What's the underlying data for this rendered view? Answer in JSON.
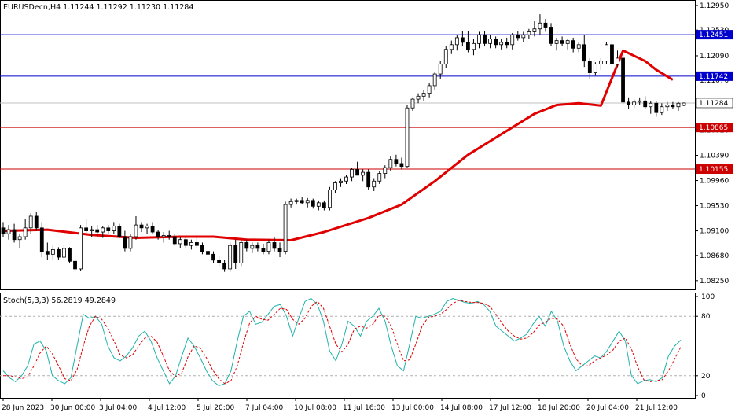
{
  "chart_title": "EURUSDecn,H4  1.11244 1.11292 1.11230 1.11284",
  "colors": {
    "bull_body": "#ffffff",
    "bear_body": "#000000",
    "wick": "#000000",
    "ma_line": "#e00000",
    "resistance_line": "#0000cc",
    "support_line": "#cc0000",
    "current_price_line": "#c0c0c0",
    "stoch_main": "#20b2aa",
    "stoch_signal": "#e00000",
    "blue_badge": "#0000cc",
    "red_badge": "#cc0000",
    "current_badge": "#ffffff"
  },
  "chart_data": [
    {
      "type": "candlestick",
      "ylim": [
        1.081,
        1.1303
      ],
      "y_ticks": [
        "1.12950",
        "1.12530",
        "1.12090",
        "1.11670",
        "1.11250",
        "1.10820",
        "1.10390",
        "1.09960",
        "1.09530",
        "1.09100",
        "1.08680",
        "1.08250"
      ],
      "x_tick_labels": [
        "28 Jun 2023",
        "30 Jun 00:00",
        "3 Jul 04:00",
        "4 Jul 12:00",
        "5 Jul 20:00",
        "7 Jul 04:00",
        "10 Jul 08:00",
        "11 Jul 16:00",
        "13 Jul 00:00",
        "14 Jul 08:00",
        "17 Jul 12:00",
        "18 Jul 20:00",
        "20 Jul 04:00",
        "21 Jul 12:00"
      ],
      "horizontal_lines": [
        {
          "label": "1.12451",
          "value": 1.12451,
          "kind": "resistance"
        },
        {
          "label": "1.11742",
          "value": 1.11742,
          "kind": "resistance"
        },
        {
          "label": "1.10865",
          "value": 1.10865,
          "kind": "support"
        },
        {
          "label": "1.10155",
          "value": 1.10155,
          "kind": "support"
        }
      ],
      "current_price": {
        "label": "1.11284",
        "value": 1.11284
      },
      "ohlc": [
        [
          1.0915,
          1.0925,
          1.09,
          1.0905
        ],
        [
          1.0905,
          1.092,
          1.0895,
          1.0912
        ],
        [
          1.0912,
          1.0922,
          1.089,
          1.0895
        ],
        [
          1.0895,
          1.0905,
          1.088,
          1.09
        ],
        [
          1.09,
          1.093,
          1.0895,
          1.0915
        ],
        [
          1.0915,
          1.094,
          1.0905,
          1.0935
        ],
        [
          1.0935,
          1.0942,
          1.091,
          1.0915
        ],
        [
          1.0915,
          1.0925,
          1.0865,
          1.0875
        ],
        [
          1.0875,
          1.089,
          1.086,
          1.087
        ],
        [
          1.087,
          1.0885,
          1.086,
          1.0878
        ],
        [
          1.0878,
          1.0882,
          1.086,
          1.0865
        ],
        [
          1.0865,
          1.0885,
          1.086,
          1.088
        ],
        [
          1.088,
          1.0882,
          1.0855,
          1.0858
        ],
        [
          1.0858,
          1.087,
          1.084,
          1.0845
        ],
        [
          1.0845,
          1.092,
          1.0842,
          1.0915
        ],
        [
          1.0915,
          1.093,
          1.0905,
          1.091
        ],
        [
          1.091,
          1.0918,
          1.09,
          1.0912
        ],
        [
          1.0912,
          1.092,
          1.09,
          1.0908
        ],
        [
          1.0908,
          1.0918,
          1.0898,
          1.0915
        ],
        [
          1.0915,
          1.092,
          1.0905,
          1.091
        ],
        [
          1.091,
          1.0925,
          1.0905,
          1.0918
        ],
        [
          1.0918,
          1.0922,
          1.0898,
          1.09
        ],
        [
          1.09,
          1.091,
          1.0875,
          1.088
        ],
        [
          1.088,
          1.0905,
          1.0875,
          1.09
        ],
        [
          1.09,
          1.0935,
          1.0895,
          1.092
        ],
        [
          1.092,
          1.0925,
          1.0908,
          1.0915
        ],
        [
          1.0915,
          1.0922,
          1.0905,
          1.0918
        ],
        [
          1.0918,
          1.0925,
          1.0905,
          1.0908
        ],
        [
          1.0908,
          1.0912,
          1.0895,
          1.09
        ],
        [
          1.09,
          1.0908,
          1.089,
          1.0902
        ],
        [
          1.0902,
          1.091,
          1.0895,
          1.09
        ],
        [
          1.09,
          1.0905,
          1.0885,
          1.0888
        ],
        [
          1.0888,
          1.09,
          1.088,
          1.0895
        ],
        [
          1.0895,
          1.09,
          1.088,
          1.0885
        ],
        [
          1.0885,
          1.0895,
          1.0878,
          1.089
        ],
        [
          1.089,
          1.09,
          1.088,
          1.0885
        ],
        [
          1.0885,
          1.089,
          1.087,
          1.0875
        ],
        [
          1.0875,
          1.0885,
          1.0862,
          1.087
        ],
        [
          1.087,
          1.0875,
          1.0855,
          1.086
        ],
        [
          1.086,
          1.0868,
          1.085,
          1.0855
        ],
        [
          1.0855,
          1.086,
          1.084,
          1.0845
        ],
        [
          1.0845,
          1.089,
          1.084,
          1.0885
        ],
        [
          1.0885,
          1.0895,
          1.0845,
          1.0855
        ],
        [
          1.0855,
          1.0895,
          1.085,
          1.089
        ],
        [
          1.089,
          1.0895,
          1.0875,
          1.088
        ],
        [
          1.088,
          1.089,
          1.0872,
          1.0885
        ],
        [
          1.0885,
          1.089,
          1.0875,
          1.088
        ],
        [
          1.088,
          1.0888,
          1.087,
          1.0875
        ],
        [
          1.0875,
          1.0895,
          1.087,
          1.089
        ],
        [
          1.089,
          1.09,
          1.0875,
          1.088
        ],
        [
          1.088,
          1.089,
          1.0865,
          1.0875
        ],
        [
          1.0875,
          1.096,
          1.087,
          1.0955
        ],
        [
          1.0955,
          1.0965,
          1.095,
          1.096
        ],
        [
          1.096,
          1.0965,
          1.0955,
          1.0962
        ],
        [
          1.0962,
          1.0968,
          1.0955,
          1.0958
        ],
        [
          1.0958,
          1.0966,
          1.095,
          1.0962
        ],
        [
          1.0962,
          1.0965,
          1.0948,
          1.0952
        ],
        [
          1.0952,
          1.0962,
          1.0945,
          1.0958
        ],
        [
          1.0958,
          1.0962,
          1.0945,
          1.095
        ],
        [
          1.095,
          1.0985,
          1.0945,
          1.098
        ],
        [
          1.098,
          1.0995,
          1.0975,
          1.0992
        ],
        [
          1.0992,
          1.1,
          1.0985,
          1.0995
        ],
        [
          1.0995,
          1.1005,
          1.099,
          1.1002
        ],
        [
          1.1002,
          1.1018,
          1.0995,
          1.1015
        ],
        [
          1.1015,
          1.1028,
          1.1008,
          1.1005
        ],
        [
          1.1005,
          1.1015,
          1.0995,
          1.101
        ],
        [
          1.101,
          1.1015,
          1.098,
          1.0985
        ],
        [
          1.0985,
          1.1,
          1.0978,
          1.0995
        ],
        [
          1.0995,
          1.1012,
          1.099,
          1.1008
        ],
        [
          1.1008,
          1.1022,
          1.1,
          1.1018
        ],
        [
          1.1018,
          1.1038,
          1.1012,
          1.1032
        ],
        [
          1.1032,
          1.104,
          1.102,
          1.1025
        ],
        [
          1.1025,
          1.1035,
          1.1015,
          1.102
        ],
        [
          1.102,
          1.1125,
          1.1018,
          1.112
        ],
        [
          1.112,
          1.1138,
          1.1115,
          1.1135
        ],
        [
          1.1135,
          1.1145,
          1.1128,
          1.114
        ],
        [
          1.114,
          1.115,
          1.1132,
          1.1145
        ],
        [
          1.1145,
          1.1162,
          1.1138,
          1.1158
        ],
        [
          1.1158,
          1.1182,
          1.115,
          1.1178
        ],
        [
          1.1178,
          1.12,
          1.117,
          1.1195
        ],
        [
          1.1195,
          1.1225,
          1.1188,
          1.122
        ],
        [
          1.122,
          1.1235,
          1.1212,
          1.1228
        ],
        [
          1.1228,
          1.1245,
          1.1218,
          1.124
        ],
        [
          1.124,
          1.1252,
          1.1225,
          1.1232
        ],
        [
          1.1232,
          1.1252,
          1.1215,
          1.122
        ],
        [
          1.122,
          1.1238,
          1.121,
          1.123
        ],
        [
          1.123,
          1.125,
          1.1222,
          1.1245
        ],
        [
          1.1245,
          1.1252,
          1.1225,
          1.123
        ],
        [
          1.123,
          1.1245,
          1.1222,
          1.1238
        ],
        [
          1.1238,
          1.1242,
          1.1222,
          1.1228
        ],
        [
          1.1228,
          1.1238,
          1.122,
          1.1232
        ],
        [
          1.1232,
          1.124,
          1.1222,
          1.1228
        ],
        [
          1.1228,
          1.1248,
          1.122,
          1.1245
        ],
        [
          1.1245,
          1.1252,
          1.1235,
          1.124
        ],
        [
          1.124,
          1.125,
          1.1232,
          1.1245
        ],
        [
          1.1245,
          1.1255,
          1.1238,
          1.125
        ],
        [
          1.125,
          1.1268,
          1.1242,
          1.1255
        ],
        [
          1.1255,
          1.128,
          1.1245,
          1.1265
        ],
        [
          1.1265,
          1.1272,
          1.125,
          1.1258
        ],
        [
          1.1258,
          1.1265,
          1.1225,
          1.123
        ],
        [
          1.123,
          1.124,
          1.1218,
          1.1235
        ],
        [
          1.1235,
          1.1242,
          1.1225,
          1.123
        ],
        [
          1.123,
          1.1238,
          1.122,
          1.1235
        ],
        [
          1.1235,
          1.124,
          1.1215,
          1.1222
        ],
        [
          1.1222,
          1.1232,
          1.1215,
          1.1228
        ],
        [
          1.1228,
          1.1245,
          1.119,
          1.12
        ],
        [
          1.12,
          1.1205,
          1.117,
          1.118
        ],
        [
          1.118,
          1.1198,
          1.1175,
          1.1195
        ],
        [
          1.1195,
          1.1205,
          1.1185,
          1.12
        ],
        [
          1.12,
          1.1232,
          1.1195,
          1.1228
        ],
        [
          1.1228,
          1.1235,
          1.1188,
          1.1195
        ],
        [
          1.1195,
          1.1218,
          1.119,
          1.1205
        ],
        [
          1.1205,
          1.121,
          1.1125,
          1.113
        ],
        [
          1.113,
          1.1138,
          1.1118,
          1.1125
        ],
        [
          1.1125,
          1.1135,
          1.112,
          1.113
        ],
        [
          1.113,
          1.1138,
          1.1125,
          1.1132
        ],
        [
          1.1132,
          1.114,
          1.1118,
          1.1122
        ],
        [
          1.1122,
          1.1132,
          1.111,
          1.1128
        ],
        [
          1.1128,
          1.1132,
          1.1105,
          1.1112
        ],
        [
          1.1112,
          1.1128,
          1.1108,
          1.1122
        ],
        [
          1.1122,
          1.113,
          1.1115,
          1.1125
        ],
        [
          1.1125,
          1.113,
          1.1118,
          1.1122
        ],
        [
          1.1122,
          1.113,
          1.1115,
          1.1128
        ],
        [
          1.11244,
          1.11292,
          1.1123,
          1.11284
        ]
      ],
      "moving_average": [
        [
          0,
          1.091
        ],
        [
          8,
          1.0912
        ],
        [
          16,
          1.0903
        ],
        [
          24,
          1.0898
        ],
        [
          32,
          1.09
        ],
        [
          38,
          1.09
        ],
        [
          44,
          1.0895
        ],
        [
          52,
          1.0894
        ],
        [
          58,
          1.0908
        ],
        [
          66,
          1.0932
        ],
        [
          72,
          1.0955
        ],
        [
          78,
          1.0995
        ],
        [
          84,
          1.104
        ],
        [
          90,
          1.1075
        ],
        [
          96,
          1.111
        ],
        [
          100,
          1.1125
        ],
        [
          104,
          1.1128
        ],
        [
          108,
          1.1124
        ],
        [
          112,
          1.1218
        ],
        [
          116,
          1.12
        ],
        [
          118,
          1.1185
        ],
        [
          121,
          1.1168
        ]
      ]
    },
    {
      "type": "line",
      "title": "Stoch(5,3,3) 56.2819 49.2849",
      "ylim": [
        0,
        100
      ],
      "y_ticks": [
        "100",
        "80",
        "20",
        "0"
      ],
      "levels": [
        80,
        20
      ],
      "series": [
        {
          "values": [
            25,
            18,
            14,
            20,
            30,
            52,
            55,
            45,
            20,
            15,
            12,
            18,
            50,
            82,
            78,
            80,
            72,
            50,
            38,
            35,
            40,
            48,
            60,
            65,
            55,
            38,
            25,
            12,
            20,
            40,
            58,
            50,
            38,
            25,
            15,
            10,
            12,
            25,
            55,
            80,
            85,
            72,
            74,
            82,
            90,
            92,
            80,
            60,
            78,
            95,
            98,
            92,
            75,
            45,
            35,
            52,
            75,
            70,
            60,
            75,
            80,
            88,
            75,
            50,
            30,
            25,
            52,
            80,
            78,
            80,
            82,
            85,
            95,
            98,
            96,
            94,
            93,
            95,
            92,
            85,
            70,
            65,
            60,
            55,
            58,
            62,
            72,
            80,
            70,
            85,
            75,
            50,
            35,
            25,
            30,
            35,
            40,
            38,
            45,
            55,
            65,
            55,
            20,
            12,
            15,
            16,
            14,
            18,
            40,
            50,
            56
          ]
        },
        {
          "values": [
            20,
            20,
            19,
            17,
            19,
            30,
            43,
            50,
            42,
            30,
            17,
            15,
            26,
            50,
            70,
            80,
            77,
            68,
            55,
            41,
            38,
            41,
            50,
            58,
            60,
            54,
            40,
            25,
            19,
            23,
            39,
            50,
            48,
            38,
            26,
            17,
            12,
            15,
            30,
            53,
            73,
            80,
            77,
            76,
            82,
            88,
            87,
            77,
            72,
            78,
            90,
            95,
            88,
            70,
            52,
            44,
            52,
            67,
            70,
            68,
            72,
            81,
            80,
            70,
            52,
            35,
            36,
            52,
            70,
            79,
            80,
            82,
            87,
            93,
            96,
            95,
            94,
            94,
            93,
            90,
            82,
            73,
            65,
            60,
            57,
            58,
            63,
            71,
            74,
            78,
            77,
            70,
            52,
            37,
            30,
            30,
            35,
            38,
            41,
            46,
            55,
            58,
            47,
            29,
            16,
            14,
            15,
            16,
            25,
            37,
            49
          ]
        }
      ]
    }
  ]
}
